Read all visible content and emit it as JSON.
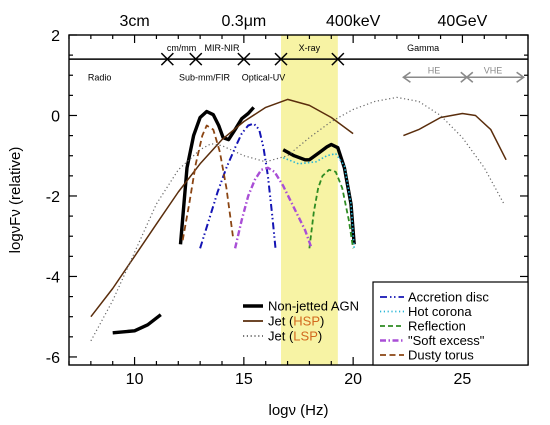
{
  "chart_data": {
    "type": "line",
    "xlabel": "logν (Hz)",
    "ylabel": "logνFν (relative)",
    "xlim": [
      7,
      28
    ],
    "ylim": [
      -6.2,
      2
    ],
    "x_ticks": [
      10,
      15,
      20,
      25
    ],
    "y_ticks": [
      -6,
      -4,
      -2,
      0,
      2
    ],
    "top_axis": [
      {
        "label": "3cm",
        "x": 10
      },
      {
        "label": "0.3μm",
        "x": 15
      },
      {
        "label": "400keV",
        "x": 20
      },
      {
        "label": "40GeV",
        "x": 25
      }
    ],
    "highlight_band": {
      "x": [
        16.7,
        19.3
      ],
      "color": "#f7f3a4"
    },
    "bands_line_y": 1.4,
    "band_dividers": [
      11.5,
      12.8,
      15,
      16.7,
      19.3
    ],
    "bands": [
      {
        "label": "Radio",
        "x": 8.4,
        "y": 0.95
      },
      {
        "label": "cm/mm",
        "x": 12.15,
        "y": 1.68
      },
      {
        "label": "Sub-mm/FIR",
        "x": 13.2,
        "y": 0.95
      },
      {
        "label": "MIR-NIR",
        "x": 14.0,
        "y": 1.68
      },
      {
        "label": "Optical-UV",
        "x": 15.9,
        "y": 0.95
      },
      {
        "label": "X-ray",
        "x": 18.0,
        "y": 1.68
      },
      {
        "label": "Gamma",
        "x": 23.2,
        "y": 1.68
      }
    ],
    "gamma_ranges": [
      {
        "label": "HE",
        "x_from": 25.2,
        "x_to": 22.3,
        "label_x": 23.7
      },
      {
        "label": "VHE",
        "x_from": 25.2,
        "x_to": 27.8,
        "label_x": 26.4
      }
    ],
    "gamma_ranges_y": 0.95,
    "legend_left": {
      "position": "bottom-center",
      "entries": [
        {
          "parts": [
            {
              "text": "Non-jetted AGN",
              "color": "#000000"
            }
          ],
          "color": "#000000",
          "style": "solid-thick"
        },
        {
          "parts": [
            {
              "text": "Jet (",
              "color": "#000000"
            },
            {
              "text": "HSP",
              "color": "#d2691e"
            },
            {
              "text": ")",
              "color": "#000000"
            }
          ],
          "color": "#5a2d0c",
          "style": "solid"
        },
        {
          "parts": [
            {
              "text": "Jet (",
              "color": "#000000"
            },
            {
              "text": "LSP",
              "color": "#d2691e"
            },
            {
              "text": ")",
              "color": "#000000"
            }
          ],
          "color": "#666666",
          "style": "dotted"
        }
      ]
    },
    "legend_right": {
      "position": "bottom-right",
      "entries": [
        {
          "text": "Accretion disc",
          "color": "#1414b4",
          "style": "dashdotdot"
        },
        {
          "text": "Hot corona",
          "color": "#29b6d6",
          "style": "dotted"
        },
        {
          "text": "Reflection",
          "color": "#2e8b22",
          "style": "dashed"
        },
        {
          "text": "\"Soft excess\"",
          "color": "#a94ed6",
          "style": "dashdot"
        },
        {
          "text": "Dusty torus",
          "color": "#8b4513",
          "style": "dashed-long"
        }
      ]
    },
    "series": [
      {
        "name": "Non-jetted AGN",
        "color": "#000000",
        "width": 3.4,
        "dash": "",
        "points": [
          [
            9,
            -5.4
          ],
          [
            10,
            -5.35
          ],
          [
            10.6,
            -5.2
          ],
          [
            11.2,
            -4.95
          ]
        ]
      },
      {
        "name": "Non-jetted AGN",
        "color": "#000000",
        "width": 3.4,
        "dash": "",
        "points": [
          [
            12.1,
            -3.2
          ],
          [
            12.4,
            -1.3
          ],
          [
            12.7,
            -0.5
          ],
          [
            13.0,
            -0.05
          ],
          [
            13.3,
            0.1
          ],
          [
            13.6,
            0.02
          ],
          [
            13.85,
            -0.25
          ],
          [
            14.05,
            -0.55
          ],
          [
            14.3,
            -0.6
          ],
          [
            14.6,
            -0.35
          ],
          [
            14.9,
            -0.08
          ],
          [
            15.2,
            0.05
          ],
          [
            15.45,
            0.2
          ]
        ]
      },
      {
        "name": "Non-jetted AGN",
        "color": "#000000",
        "width": 3.4,
        "dash": "",
        "points": [
          [
            16.8,
            -0.85
          ],
          [
            17.3,
            -1.0
          ],
          [
            17.8,
            -1.1
          ],
          [
            18.0,
            -1.1
          ],
          [
            18.5,
            -0.9
          ],
          [
            18.8,
            -0.78
          ],
          [
            19.0,
            -0.72
          ],
          [
            19.3,
            -0.8
          ],
          [
            19.6,
            -1.3
          ],
          [
            19.9,
            -2.2
          ],
          [
            20.05,
            -3.2
          ]
        ]
      },
      {
        "name": "Jet (HSP)",
        "color": "#5a2d0c",
        "width": 1.5,
        "dash": "",
        "points": [
          [
            8,
            -5.0
          ],
          [
            9,
            -4.3
          ],
          [
            10,
            -3.5
          ],
          [
            11,
            -2.7
          ],
          [
            12,
            -1.9
          ],
          [
            13,
            -1.2
          ],
          [
            14,
            -0.6
          ],
          [
            15,
            -0.15
          ],
          [
            16,
            0.2
          ],
          [
            17,
            0.4
          ],
          [
            18,
            0.25
          ],
          [
            19,
            -0.05
          ],
          [
            20,
            -0.45
          ]
        ]
      },
      {
        "name": "Jet (HSP)",
        "color": "#5a2d0c",
        "width": 1.5,
        "dash": "",
        "points": [
          [
            22.3,
            -0.5
          ],
          [
            23,
            -0.35
          ],
          [
            24,
            -0.05
          ],
          [
            25,
            0.05
          ],
          [
            25.6,
            0.0
          ],
          [
            26.3,
            -0.35
          ],
          [
            27,
            -1.1
          ]
        ]
      },
      {
        "name": "Jet (LSP)",
        "color": "#666666",
        "width": 1.2,
        "dash": "1.2,2.6",
        "points": [
          [
            8,
            -5.6
          ],
          [
            9,
            -4.6
          ],
          [
            10,
            -3.4
          ],
          [
            11,
            -2.2
          ],
          [
            12,
            -1.35
          ],
          [
            13,
            -0.85
          ],
          [
            13.5,
            -0.7
          ],
          [
            14,
            -0.75
          ],
          [
            15,
            -1.0
          ],
          [
            16,
            -1.15
          ],
          [
            17,
            -1.0
          ],
          [
            18,
            -0.55
          ],
          [
            19,
            -0.15
          ],
          [
            20,
            0.15
          ],
          [
            21,
            0.35
          ],
          [
            22,
            0.45
          ],
          [
            23,
            0.35
          ],
          [
            24,
            0.0
          ],
          [
            25,
            -0.55
          ],
          [
            26,
            -1.3
          ],
          [
            26.9,
            -2.2
          ]
        ]
      },
      {
        "name": "Accretion disc",
        "color": "#1414b4",
        "width": 2.0,
        "dash": "7,3,1.5,2.5,1.5,3",
        "points": [
          [
            13.0,
            -3.3
          ],
          [
            13.4,
            -2.6
          ],
          [
            13.8,
            -1.9
          ],
          [
            14.2,
            -1.3
          ],
          [
            14.6,
            -0.8
          ],
          [
            14.9,
            -0.45
          ],
          [
            15.2,
            -0.25
          ],
          [
            15.45,
            -0.2
          ],
          [
            15.7,
            -0.35
          ],
          [
            15.9,
            -0.8
          ],
          [
            16.1,
            -1.5
          ],
          [
            16.3,
            -2.5
          ],
          [
            16.45,
            -3.3
          ]
        ]
      },
      {
        "name": "Hot corona",
        "color": "#29b6d6",
        "width": 1.6,
        "dash": "1.5,2.2",
        "points": [
          [
            16.8,
            -1.05
          ],
          [
            17.5,
            -1.2
          ],
          [
            18.3,
            -1.15
          ],
          [
            18.8,
            -1.0
          ],
          [
            19.2,
            -0.95
          ],
          [
            19.6,
            -1.25
          ],
          [
            19.9,
            -2.2
          ],
          [
            20.05,
            -3.3
          ]
        ]
      },
      {
        "name": "Reflection",
        "color": "#2e8b22",
        "width": 1.8,
        "dash": "5,3",
        "points": [
          [
            18.0,
            -3.3
          ],
          [
            18.2,
            -2.4
          ],
          [
            18.4,
            -1.8
          ],
          [
            18.6,
            -1.5
          ],
          [
            18.9,
            -1.35
          ],
          [
            19.2,
            -1.4
          ],
          [
            19.5,
            -1.8
          ],
          [
            19.8,
            -2.6
          ],
          [
            20.0,
            -3.3
          ]
        ]
      },
      {
        "name": "\"Soft excess\"",
        "color": "#a94ed6",
        "width": 2.4,
        "dash": "6,2.5,1.5,2.5",
        "points": [
          [
            14.6,
            -3.3
          ],
          [
            14.9,
            -2.6
          ],
          [
            15.2,
            -2.0
          ],
          [
            15.5,
            -1.6
          ],
          [
            15.8,
            -1.35
          ],
          [
            16.1,
            -1.3
          ],
          [
            16.4,
            -1.4
          ],
          [
            16.8,
            -1.75
          ],
          [
            17.3,
            -2.3
          ],
          [
            17.8,
            -2.85
          ],
          [
            18.1,
            -3.3
          ]
        ]
      },
      {
        "name": "Dusty torus",
        "color": "#8b4513",
        "width": 1.8,
        "dash": "6,3.5",
        "points": [
          [
            12.2,
            -3.1
          ],
          [
            12.5,
            -2.2
          ],
          [
            12.8,
            -1.2
          ],
          [
            13.1,
            -0.5
          ],
          [
            13.3,
            -0.25
          ],
          [
            13.6,
            -0.35
          ],
          [
            13.9,
            -0.9
          ],
          [
            14.2,
            -1.8
          ],
          [
            14.5,
            -3.0
          ]
        ]
      }
    ]
  }
}
